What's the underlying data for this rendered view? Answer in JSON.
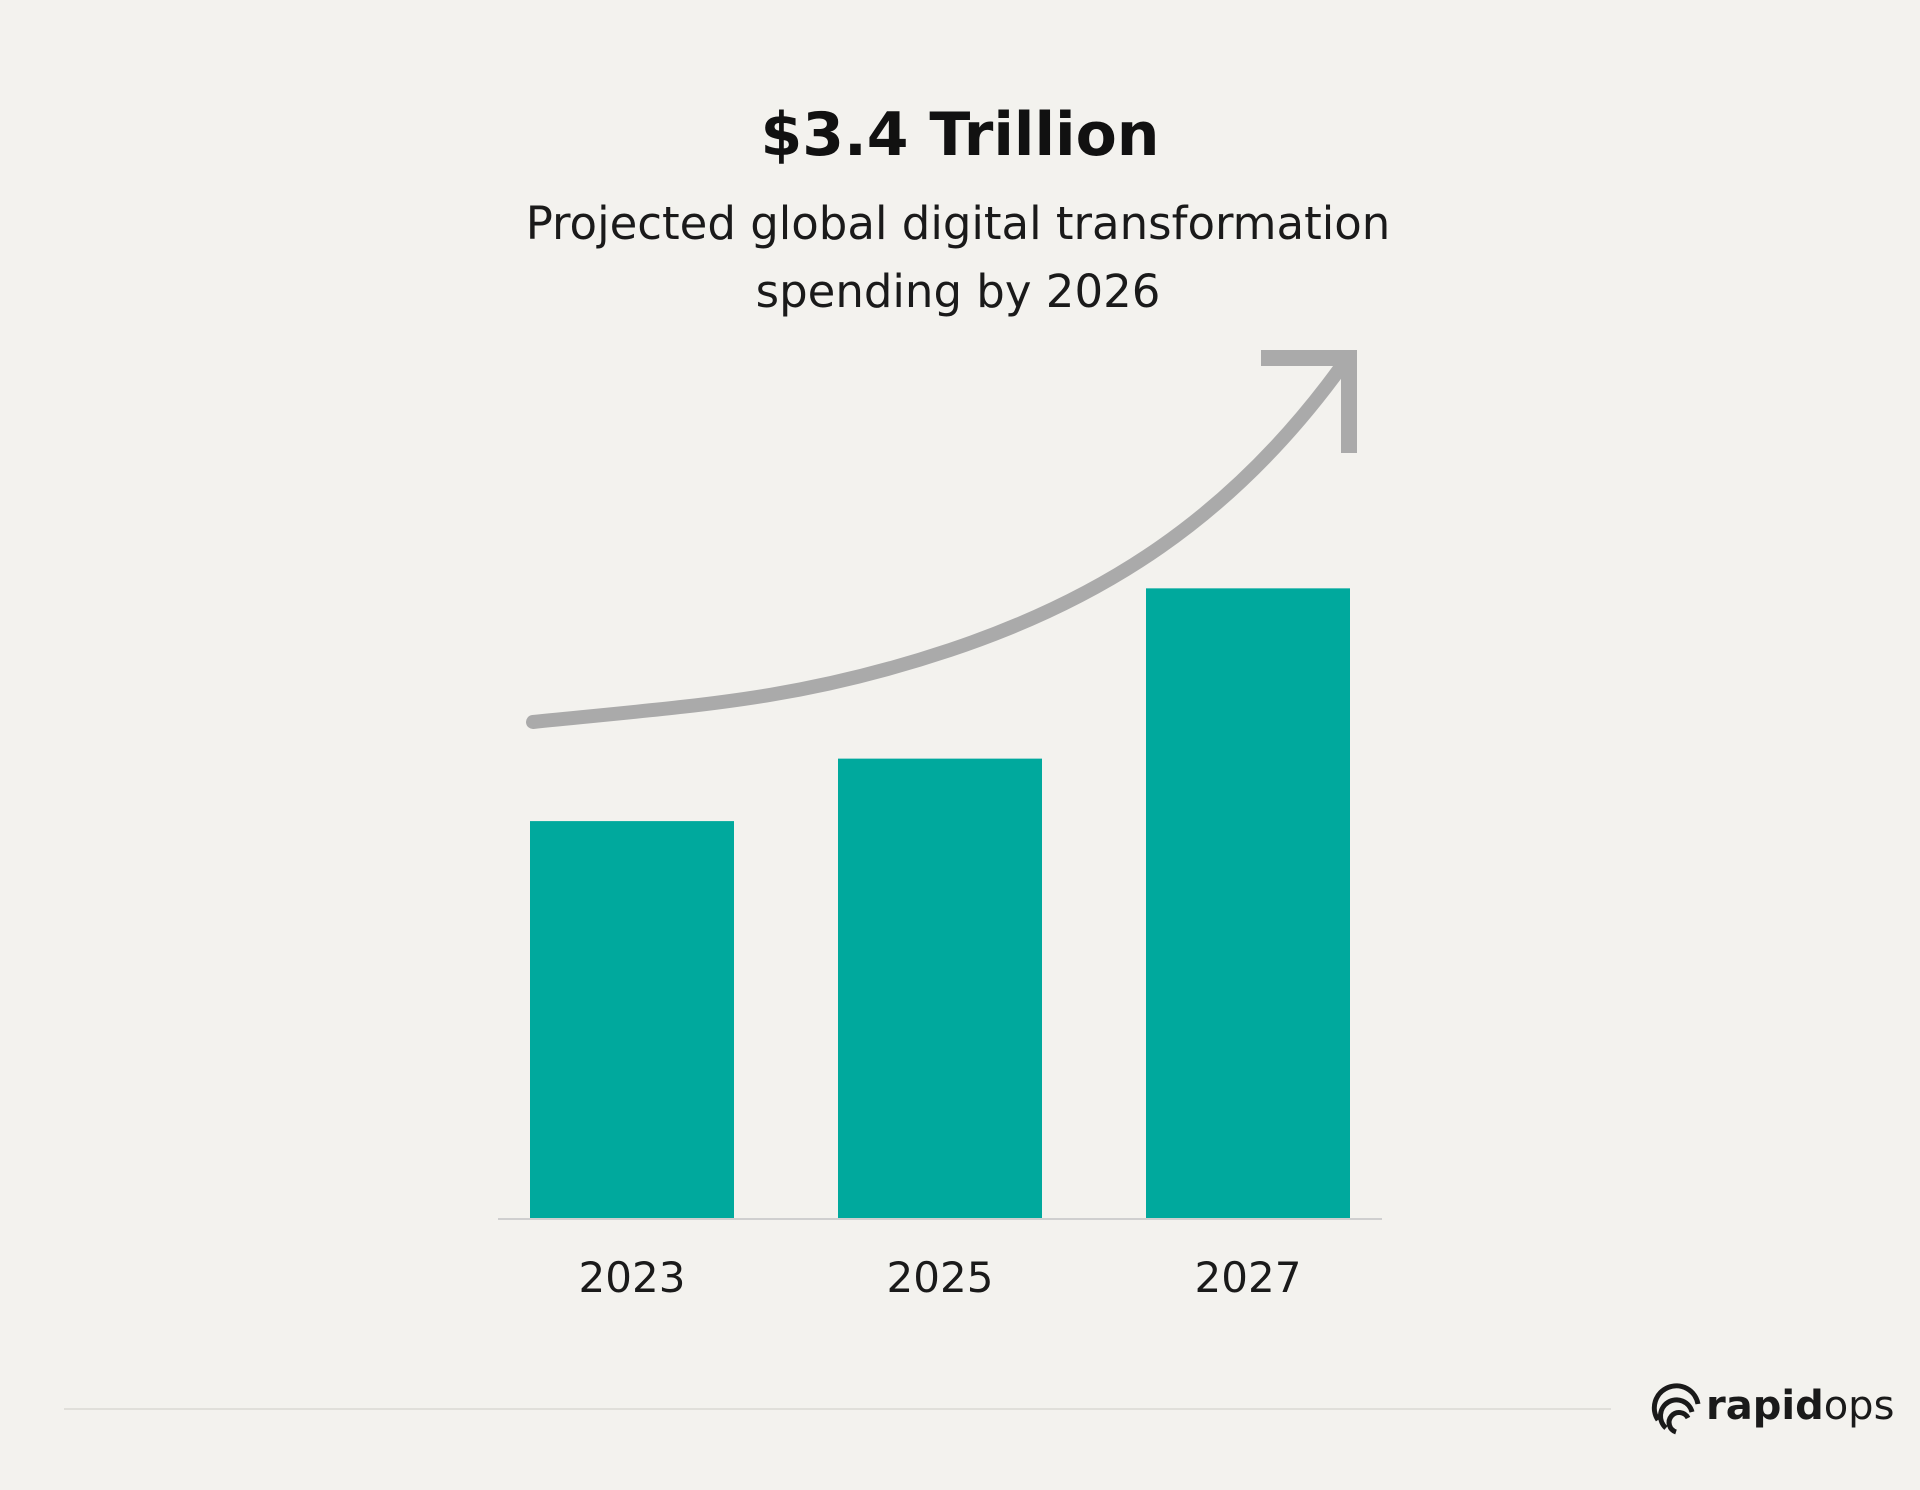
{
  "chart_data": {
    "type": "bar",
    "title": "$3.4 Trillion",
    "subtitle": "Projected global digital transformation spending by 2026",
    "categories": [
      "2023",
      "2025",
      "2027"
    ],
    "values": [
      324,
      375,
      514
    ],
    "color": "#00a99d",
    "ylim": [
      0,
      600
    ]
  },
  "footer": {
    "logo_bold": "rapid",
    "logo_light": "ops"
  }
}
